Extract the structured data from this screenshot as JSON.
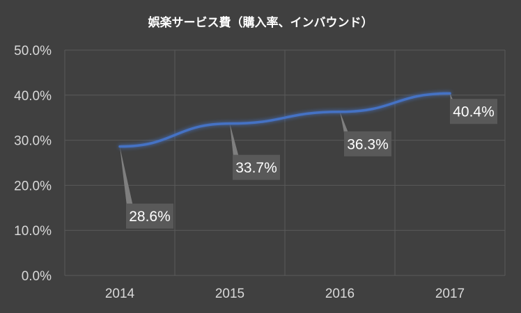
{
  "chart_data": {
    "type": "line",
    "title": "娯楽サービス費（購入率、インバウンド）",
    "categories": [
      "2014",
      "2015",
      "2016",
      "2017"
    ],
    "series": [
      {
        "values": [
          28.6,
          33.7,
          36.3,
          40.4
        ]
      }
    ],
    "data_labels": [
      "28.6%",
      "33.7%",
      "36.3%",
      "40.4%"
    ],
    "y_ticks": [
      "0.0%",
      "10.0%",
      "20.0%",
      "30.0%",
      "40.0%",
      "50.0%"
    ],
    "ylim": [
      0,
      50
    ],
    "grid": true,
    "legend": "none",
    "colors": {
      "background": "#404040",
      "line": "#4472c4",
      "grid": "#5a5a5a",
      "label_box": "#595959",
      "text": "#d9d9d9"
    }
  }
}
